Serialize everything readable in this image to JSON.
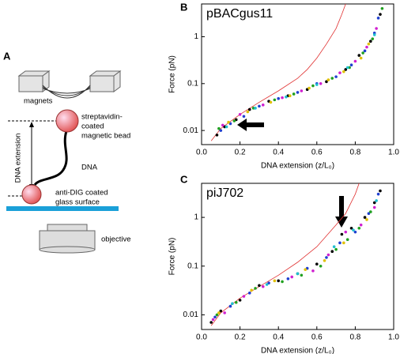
{
  "panel_labels": [
    "A",
    "B",
    "C"
  ],
  "diagram": {
    "magnets": "magnets",
    "bead": [
      "streptavidin-",
      "coated",
      "magnetic bead"
    ],
    "dna": "DNA",
    "surface": [
      "anti-DIG coated",
      "glass surface"
    ],
    "objective": "objective",
    "extension": "DNA extension"
  },
  "chart_data": [
    {
      "type": "scatter",
      "title": "pBACgus11",
      "xlabel": "DNA extension (z/L₀)",
      "ylabel": "Force (pN)",
      "xlim": [
        0,
        1
      ],
      "xticks": [
        {
          "value": 0,
          "label": "0.0"
        },
        0.2,
        0.4,
        0.6,
        0.8,
        {
          "value": 1,
          "label": "1.0"
        }
      ],
      "ylim": [
        0.005,
        5
      ],
      "yticks": [
        0.01,
        0.1,
        1
      ],
      "yscale": "log",
      "series": [
        {
          "color": "#e03030",
          "mode": "line",
          "x": [
            0.05,
            0.1,
            0.2,
            0.3,
            0.4,
            0.5,
            0.55,
            0.6,
            0.65,
            0.7,
            0.73,
            0.75
          ],
          "values": [
            0.006,
            0.011,
            0.022,
            0.04,
            0.07,
            0.13,
            0.2,
            0.35,
            0.7,
            1.5,
            3,
            5
          ]
        },
        {
          "color": "#000000",
          "mode": "markers",
          "x": [
            0.08,
            0.12,
            0.18,
            0.25,
            0.35,
            0.45,
            0.55,
            0.65,
            0.75,
            0.82,
            0.88,
            0.93
          ],
          "values": [
            0.008,
            0.012,
            0.017,
            0.028,
            0.042,
            0.055,
            0.075,
            0.11,
            0.2,
            0.4,
            0.8,
            3
          ]
        },
        {
          "color": "#2040d0",
          "mode": "markers",
          "x": [
            0.1,
            0.15,
            0.22,
            0.3,
            0.4,
            0.5,
            0.6,
            0.7,
            0.78,
            0.85,
            0.9,
            0.92
          ],
          "values": [
            0.01,
            0.014,
            0.02,
            0.033,
            0.048,
            0.065,
            0.1,
            0.14,
            0.25,
            0.5,
            1.2,
            2.5
          ]
        },
        {
          "color": "#20a020",
          "mode": "markers",
          "x": [
            0.09,
            0.17,
            0.27,
            0.38,
            0.48,
            0.58,
            0.68,
            0.77,
            0.84,
            0.89,
            0.94
          ],
          "values": [
            0.011,
            0.016,
            0.03,
            0.045,
            0.06,
            0.09,
            0.13,
            0.22,
            0.45,
            0.9,
            4
          ]
        },
        {
          "color": "#d020d0",
          "mode": "markers",
          "x": [
            0.11,
            0.2,
            0.32,
            0.42,
            0.52,
            0.62,
            0.72,
            0.8,
            0.86,
            0.91
          ],
          "values": [
            0.013,
            0.022,
            0.035,
            0.05,
            0.07,
            0.1,
            0.17,
            0.3,
            0.6,
            1.5
          ]
        },
        {
          "color": "#e0c000",
          "mode": "markers",
          "x": [
            0.14,
            0.24,
            0.36,
            0.46,
            0.56,
            0.66,
            0.74,
            0.83,
            0.87
          ],
          "values": [
            0.015,
            0.025,
            0.04,
            0.055,
            0.08,
            0.12,
            0.18,
            0.35,
            0.7
          ]
        },
        {
          "color": "#20c0d0",
          "mode": "markers",
          "x": [
            0.13,
            0.28,
            0.44,
            0.6,
            0.76,
            0.9
          ],
          "values": [
            0.012,
            0.03,
            0.052,
            0.095,
            0.22,
            1.1
          ]
        }
      ]
    },
    {
      "type": "scatter",
      "title": "piJ702",
      "xlabel": "DNA extension (z/L₀)",
      "ylabel": "Force (pN)",
      "xlim": [
        0,
        1
      ],
      "xticks": [
        {
          "value": 0,
          "label": "0.0"
        },
        0.2,
        0.4,
        0.6,
        0.8,
        {
          "value": 1,
          "label": "1.0"
        }
      ],
      "ylim": [
        0.005,
        5
      ],
      "yticks": [
        0.01,
        0.1,
        1
      ],
      "yscale": "log",
      "series": [
        {
          "color": "#e03030",
          "mode": "line",
          "x": [
            0.05,
            0.1,
            0.2,
            0.3,
            0.4,
            0.5,
            0.6,
            0.7,
            0.75,
            0.8,
            0.82
          ],
          "values": [
            0.006,
            0.011,
            0.022,
            0.038,
            0.065,
            0.12,
            0.25,
            0.7,
            1.2,
            3,
            5
          ]
        },
        {
          "color": "#000000",
          "mode": "markers",
          "x": [
            0.05,
            0.1,
            0.2,
            0.3,
            0.4,
            0.5,
            0.6,
            0.68,
            0.73,
            0.78,
            0.85,
            0.9,
            0.93
          ],
          "values": [
            0.007,
            0.012,
            0.02,
            0.04,
            0.05,
            0.07,
            0.11,
            0.2,
            0.45,
            0.6,
            1,
            2,
            3.5
          ]
        },
        {
          "color": "#2040d0",
          "mode": "markers",
          "x": [
            0.07,
            0.15,
            0.25,
            0.35,
            0.45,
            0.55,
            0.65,
            0.72,
            0.8,
            0.87,
            0.92
          ],
          "values": [
            0.009,
            0.015,
            0.028,
            0.045,
            0.055,
            0.09,
            0.15,
            0.3,
            0.5,
            1.2,
            3
          ]
        },
        {
          "color": "#20a020",
          "mode": "markers",
          "x": [
            0.08,
            0.18,
            0.28,
            0.42,
            0.52,
            0.62,
            0.7,
            0.76,
            0.82,
            0.88
          ],
          "values": [
            0.01,
            0.018,
            0.035,
            0.048,
            0.065,
            0.1,
            0.22,
            0.35,
            0.6,
            1.3
          ]
        },
        {
          "color": "#d020d0",
          "mode": "markers",
          "x": [
            0.06,
            0.12,
            0.22,
            0.32,
            0.47,
            0.58,
            0.66,
            0.75,
            0.83,
            0.9
          ],
          "values": [
            0.008,
            0.011,
            0.024,
            0.038,
            0.06,
            0.08,
            0.17,
            0.5,
            0.7,
            1.6
          ]
        },
        {
          "color": "#e0c000",
          "mode": "markers",
          "x": [
            0.09,
            0.26,
            0.38,
            0.54,
            0.64,
            0.74,
            0.86
          ],
          "values": [
            0.011,
            0.032,
            0.05,
            0.085,
            0.13,
            0.3,
            0.9
          ]
        },
        {
          "color": "#20c0d0",
          "mode": "markers",
          "x": [
            0.16,
            0.34,
            0.5,
            0.69,
            0.79,
            0.91
          ],
          "values": [
            0.017,
            0.042,
            0.07,
            0.25,
            0.55,
            2.2
          ]
        }
      ]
    }
  ]
}
